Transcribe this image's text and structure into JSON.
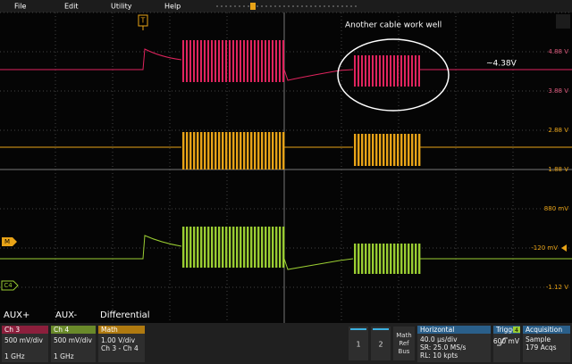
{
  "menu": [
    "File",
    "Edit",
    "Utility",
    "Help"
  ],
  "trigger_marker": "T",
  "annotations": {
    "note": "Another cable work well",
    "level": "~4.38V"
  },
  "scale_labels": [
    "4.88 V",
    "3.88 V",
    "2.88 V",
    "1.88 V",
    "880 mV",
    "-120 mV",
    "-1.12 V"
  ],
  "markers": {
    "math": "M",
    "ch4": "C4"
  },
  "trace_labels": [
    "AUX+",
    "AUX-",
    "Differential"
  ],
  "panels": {
    "ch3": {
      "title": "Ch 3",
      "scale": "500 mV/div",
      "bandwidth": "1 GHz"
    },
    "ch4": {
      "title": "Ch 4",
      "scale": "500 mV/div",
      "bandwidth": "1 GHz"
    },
    "math": {
      "title": "Math",
      "scale": "1.00 V/div",
      "source": "Ch 3 - Ch 4"
    }
  },
  "buttons": [
    "1",
    "2"
  ],
  "math_ref_bus": [
    "Math",
    "Ref",
    "Bus"
  ],
  "horizontal": {
    "title": "Horizontal",
    "lines": [
      "40.0 µs/div",
      "SR: 25.0 MS/s",
      "RL: 10 kpts"
    ]
  },
  "trigger": {
    "title": "Trigger",
    "source": "4",
    "level": "600 mV"
  },
  "acquisition": {
    "title": "Acquisition",
    "lines": [
      "Sample",
      "179 Acqs"
    ]
  }
}
